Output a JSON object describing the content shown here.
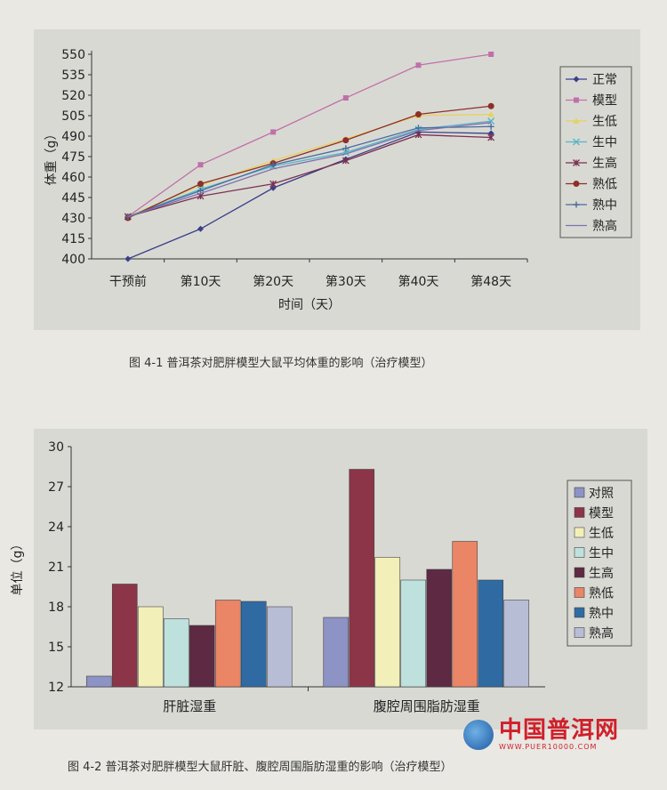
{
  "chart_data": [
    {
      "type": "line",
      "caption": "图 4-1  普洱茶对肥胖模型大鼠平均体重的影响（治疗模型）",
      "xlabel": "时间（天）",
      "ylabel": "体重（g）",
      "categories": [
        "干预前",
        "第10天",
        "第20天",
        "第30天",
        "第40天",
        "第48天"
      ],
      "yticks": [
        400,
        415,
        430,
        445,
        460,
        475,
        490,
        505,
        520,
        535,
        550
      ],
      "ylim": [
        400,
        550
      ],
      "legend_position": "right",
      "series": [
        {
          "name": "正常",
          "color": "#3a3f8a",
          "marker": "diamond",
          "values": [
            400,
            422,
            452,
            473,
            493,
            492
          ]
        },
        {
          "name": "模型",
          "color": "#c070a8",
          "marker": "square",
          "values": [
            431,
            469,
            493,
            518,
            542,
            550
          ]
        },
        {
          "name": "生低",
          "color": "#e6d25a",
          "marker": "triangle",
          "values": [
            431,
            454,
            472,
            488,
            505,
            506
          ]
        },
        {
          "name": "生中",
          "color": "#55b6c4",
          "marker": "x",
          "values": [
            431,
            451,
            468,
            478,
            495,
            501
          ]
        },
        {
          "name": "生高",
          "color": "#7a3050",
          "marker": "star",
          "values": [
            431,
            446,
            455,
            472,
            491,
            489
          ]
        },
        {
          "name": "熟低",
          "color": "#8e2f2a",
          "marker": "circle",
          "values": [
            430,
            455,
            470,
            487,
            506,
            512
          ]
        },
        {
          "name": "熟中",
          "color": "#4a6c9c",
          "marker": "plus",
          "values": [
            431,
            450,
            469,
            481,
            496,
            497
          ]
        },
        {
          "name": "熟高",
          "color": "#8070b0",
          "marker": "none",
          "values": [
            431,
            448,
            466,
            477,
            494,
            500
          ]
        }
      ]
    },
    {
      "type": "bar",
      "caption": "图 4-2  普洱茶对肥胖模型大鼠肝脏、腹腔周围脂肪湿重的影响（治疗模型）",
      "xlabel": "",
      "ylabel": "单位（g）",
      "categories": [
        "肝脏湿重",
        "腹腔周围脂肪湿重"
      ],
      "yticks": [
        12,
        15,
        18,
        21,
        24,
        27,
        30
      ],
      "ylim": [
        12,
        30
      ],
      "legend_position": "right",
      "series": [
        {
          "name": "对照",
          "color": "#8d93c4",
          "values": [
            12.8,
            17.2
          ]
        },
        {
          "name": "模型",
          "color": "#8c3548",
          "values": [
            19.7,
            28.3
          ]
        },
        {
          "name": "生低",
          "color": "#f2f0b8",
          "values": [
            18.0,
            21.7
          ]
        },
        {
          "name": "生中",
          "color": "#bfe1de",
          "values": [
            17.1,
            20.0
          ]
        },
        {
          "name": "生高",
          "color": "#5e2942",
          "values": [
            16.6,
            20.8
          ]
        },
        {
          "name": "熟低",
          "color": "#ea8566",
          "values": [
            18.5,
            22.9
          ]
        },
        {
          "name": "熟中",
          "color": "#2f6aa3",
          "values": [
            18.4,
            20.0
          ]
        },
        {
          "name": "熟高",
          "color": "#b8bdd6",
          "values": [
            18.0,
            18.5
          ]
        }
      ]
    }
  ],
  "captions": {
    "fig1": "图 4-1  普洱茶对肥胖模型大鼠平均体重的影响（治疗模型）",
    "fig2": "图 4-2  普洱茶对肥胖模型大鼠肝脏、腹腔周围脂肪湿重的影响（治疗模型）"
  },
  "watermark": {
    "logo_text": "中国普洱网",
    "title": "中国普洱网",
    "url": "WWW.PUER10000.COM"
  }
}
